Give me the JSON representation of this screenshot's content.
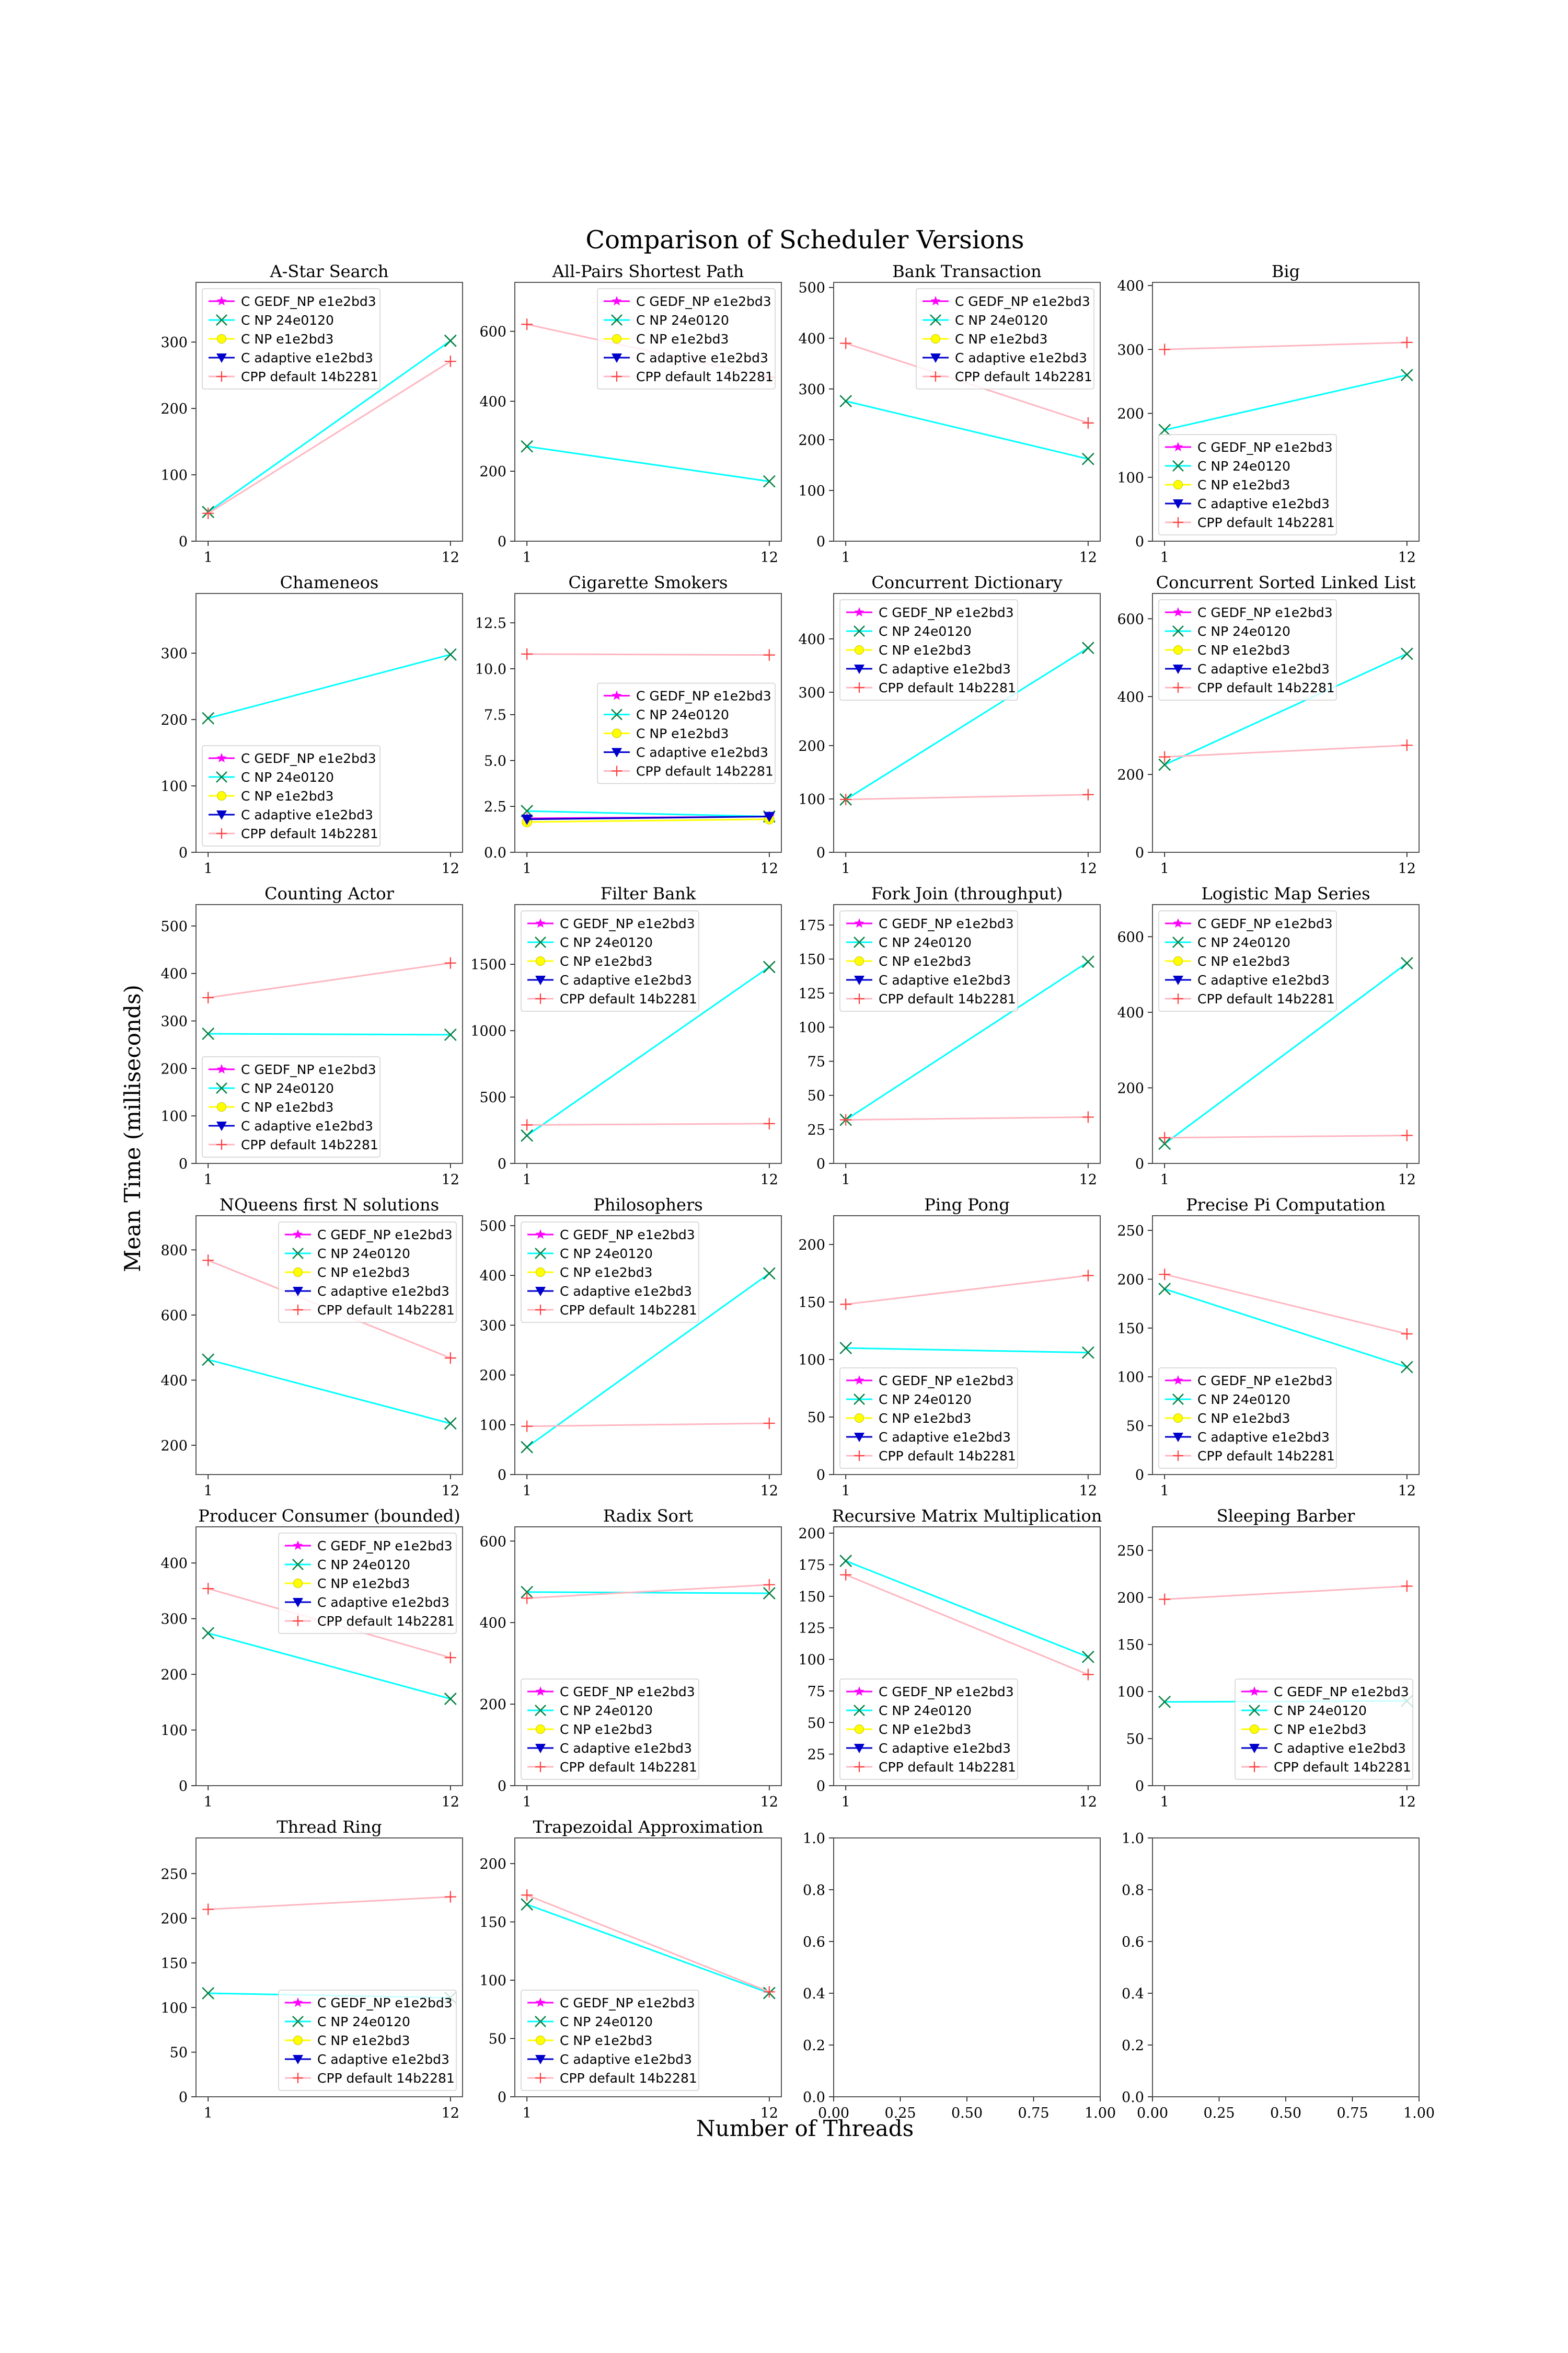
{
  "figure": {
    "suptitle": "Comparison of Scheduler Versions",
    "xlabel": "Number of Threads",
    "ylabel": "Mean Time (milliseconds)",
    "background": "#ffffff"
  },
  "legend_entries": [
    {
      "name": "C GEDF_NP e1e2bd3",
      "color": "#ff00ff",
      "marker": "star"
    },
    {
      "name": "C NP 24e0120",
      "color": "#00ffff",
      "marker": "x",
      "marker_color": "#008040"
    },
    {
      "name": "C NP e1e2bd3",
      "color": "#ffff00",
      "marker": "circle"
    },
    {
      "name": "C adaptive e1e2bd3",
      "color": "#0000cc",
      "marker": "triangle-down"
    },
    {
      "name": "CPP default 14b2281",
      "color": "#ffb6c1",
      "marker": "plus",
      "marker_color": "#ff4040"
    }
  ],
  "chart_data": [
    {
      "type": "line",
      "title": "A-Star Search",
      "x": [
        1,
        12
      ],
      "ylim": [
        0,
        390
      ],
      "yticks": [
        0,
        100,
        200,
        300
      ],
      "legend": "upper-left",
      "series": [
        {
          "name": "C NP 24e0120",
          "values": [
            44,
            302
          ]
        },
        {
          "name": "CPP default 14b2281",
          "values": [
            42,
            271
          ]
        }
      ]
    },
    {
      "type": "line",
      "title": "All-Pairs Shortest Path",
      "x": [
        1,
        12
      ],
      "ylim": [
        0,
        740
      ],
      "yticks": [
        0,
        200,
        400,
        600
      ],
      "legend": "upper-right",
      "series": [
        {
          "name": "C NP 24e0120",
          "values": [
            271,
            171
          ]
        },
        {
          "name": "CPP default 14b2281",
          "values": [
            620,
            469
          ]
        }
      ]
    },
    {
      "type": "line",
      "title": "Bank Transaction",
      "x": [
        1,
        12
      ],
      "ylim": [
        0,
        510
      ],
      "yticks": [
        0,
        100,
        200,
        300,
        400,
        500
      ],
      "legend": "upper-right",
      "series": [
        {
          "name": "C NP 24e0120",
          "values": [
            276,
            162
          ]
        },
        {
          "name": "CPP default 14b2281",
          "values": [
            390,
            233
          ]
        }
      ]
    },
    {
      "type": "line",
      "title": "Big",
      "x": [
        1,
        12
      ],
      "ylim": [
        0,
        405
      ],
      "yticks": [
        0,
        100,
        200,
        300,
        400
      ],
      "legend": "lower-left",
      "series": [
        {
          "name": "C NP 24e0120",
          "values": [
            174,
            260
          ]
        },
        {
          "name": "CPP default 14b2281",
          "values": [
            300,
            311
          ]
        }
      ]
    },
    {
      "type": "line",
      "title": "Chameneos",
      "x": [
        1,
        12
      ],
      "ylim": [
        0,
        390
      ],
      "yticks": [
        0,
        100,
        200,
        300
      ],
      "legend": "lower-left",
      "series": [
        {
          "name": "C NP 24e0120",
          "values": [
            202,
            298
          ]
        }
      ]
    },
    {
      "type": "line",
      "title": "Cigarette Smokers",
      "x": [
        1,
        12
      ],
      "ylim": [
        0,
        14.1
      ],
      "yticks": [
        0.0,
        2.5,
        5.0,
        7.5,
        10.0,
        12.5
      ],
      "tick_decimals": 1,
      "legend": "center-right",
      "series": [
        {
          "name": "C GEDF_NP e1e2bd3",
          "values": [
            1.85,
            1.95
          ]
        },
        {
          "name": "C NP 24e0120",
          "values": [
            2.25,
            1.95
          ]
        },
        {
          "name": "C NP e1e2bd3",
          "values": [
            1.65,
            1.8
          ]
        },
        {
          "name": "C adaptive e1e2bd3",
          "values": [
            1.8,
            1.95
          ]
        },
        {
          "name": "CPP default 14b2281",
          "values": [
            10.8,
            10.75
          ]
        }
      ]
    },
    {
      "type": "line",
      "title": "Concurrent Dictionary",
      "x": [
        1,
        12
      ],
      "ylim": [
        0,
        485
      ],
      "yticks": [
        0,
        100,
        200,
        300,
        400
      ],
      "legend": "upper-left",
      "series": [
        {
          "name": "C NP 24e0120",
          "values": [
            99,
            383
          ]
        },
        {
          "name": "CPP default 14b2281",
          "values": [
            99,
            108
          ]
        }
      ]
    },
    {
      "type": "line",
      "title": "Concurrent Sorted Linked List",
      "x": [
        1,
        12
      ],
      "ylim": [
        0,
        665
      ],
      "yticks": [
        0,
        200,
        400,
        600
      ],
      "legend": "upper-left",
      "series": [
        {
          "name": "C NP 24e0120",
          "values": [
            225,
            510
          ]
        },
        {
          "name": "CPP default 14b2281",
          "values": [
            245,
            275
          ]
        }
      ]
    },
    {
      "type": "line",
      "title": "Counting Actor",
      "x": [
        1,
        12
      ],
      "ylim": [
        0,
        545
      ],
      "yticks": [
        0,
        100,
        200,
        300,
        400,
        500
      ],
      "legend": "lower-left",
      "series": [
        {
          "name": "C NP 24e0120",
          "values": [
            273,
            271
          ]
        },
        {
          "name": "CPP default 14b2281",
          "values": [
            349,
            422
          ]
        }
      ]
    },
    {
      "type": "line",
      "title": "Filter Bank",
      "x": [
        1,
        12
      ],
      "ylim": [
        0,
        1950
      ],
      "yticks": [
        0,
        500,
        1000,
        1500
      ],
      "legend": "upper-left",
      "series": [
        {
          "name": "C NP 24e0120",
          "values": [
            210,
            1480
          ]
        },
        {
          "name": "CPP default 14b2281",
          "values": [
            290,
            300
          ]
        }
      ]
    },
    {
      "type": "line",
      "title": "Fork Join (throughput)",
      "x": [
        1,
        12
      ],
      "ylim": [
        0,
        190
      ],
      "yticks": [
        0,
        25,
        50,
        75,
        100,
        125,
        150,
        175
      ],
      "legend": "upper-left",
      "series": [
        {
          "name": "C NP 24e0120",
          "values": [
            32,
            148
          ]
        },
        {
          "name": "CPP default 14b2281",
          "values": [
            32,
            34
          ]
        }
      ]
    },
    {
      "type": "line",
      "title": "Logistic Map Series",
      "x": [
        1,
        12
      ],
      "ylim": [
        0,
        685
      ],
      "yticks": [
        0,
        200,
        400,
        600
      ],
      "legend": "upper-left",
      "series": [
        {
          "name": "C NP 24e0120",
          "values": [
            52,
            530
          ]
        },
        {
          "name": "CPP default 14b2281",
          "values": [
            68,
            74
          ]
        }
      ]
    },
    {
      "type": "line",
      "title": "NQueens first N solutions",
      "x": [
        1,
        12
      ],
      "ylim": [
        110,
        905
      ],
      "yticks": [
        200,
        400,
        600,
        800
      ],
      "legend": "upper-right",
      "series": [
        {
          "name": "C NP 24e0120",
          "values": [
            463,
            267
          ]
        },
        {
          "name": "CPP default 14b2281",
          "values": [
            768,
            468
          ]
        }
      ]
    },
    {
      "type": "line",
      "title": "Philosophers",
      "x": [
        1,
        12
      ],
      "ylim": [
        0,
        520
      ],
      "yticks": [
        0,
        100,
        200,
        300,
        400,
        500
      ],
      "legend": "upper-left",
      "series": [
        {
          "name": "C NP 24e0120",
          "values": [
            55,
            404
          ]
        },
        {
          "name": "CPP default 14b2281",
          "values": [
            97,
            103
          ]
        }
      ]
    },
    {
      "type": "line",
      "title": "Ping Pong",
      "x": [
        1,
        12
      ],
      "ylim": [
        0,
        225
      ],
      "yticks": [
        0,
        50,
        100,
        150,
        200
      ],
      "legend": "lower-left",
      "series": [
        {
          "name": "C NP 24e0120",
          "values": [
            110,
            106
          ]
        },
        {
          "name": "CPP default 14b2281",
          "values": [
            148,
            173
          ]
        }
      ]
    },
    {
      "type": "line",
      "title": "Precise Pi Computation",
      "x": [
        1,
        12
      ],
      "ylim": [
        0,
        265
      ],
      "yticks": [
        0,
        50,
        100,
        150,
        200,
        250
      ],
      "legend": "lower-left",
      "series": [
        {
          "name": "C NP 24e0120",
          "values": [
            190,
            110
          ]
        },
        {
          "name": "CPP default 14b2281",
          "values": [
            205,
            144
          ]
        }
      ]
    },
    {
      "type": "line",
      "title": "Producer Consumer (bounded)",
      "x": [
        1,
        12
      ],
      "ylim": [
        0,
        465
      ],
      "yticks": [
        0,
        100,
        200,
        300,
        400
      ],
      "legend": "upper-right",
      "series": [
        {
          "name": "C NP 24e0120",
          "values": [
            274,
            156
          ]
        },
        {
          "name": "CPP default 14b2281",
          "values": [
            354,
            230
          ]
        }
      ]
    },
    {
      "type": "line",
      "title": "Radix Sort",
      "x": [
        1,
        12
      ],
      "ylim": [
        0,
        635
      ],
      "yticks": [
        0,
        200,
        400,
        600
      ],
      "legend": "lower-left",
      "series": [
        {
          "name": "C NP 24e0120",
          "values": [
            475,
            472
          ]
        },
        {
          "name": "CPP default 14b2281",
          "values": [
            460,
            493
          ]
        }
      ]
    },
    {
      "type": "line",
      "title": "Recursive Matrix Multiplication",
      "x": [
        1,
        12
      ],
      "ylim": [
        0,
        205
      ],
      "yticks": [
        0,
        25,
        50,
        75,
        100,
        125,
        150,
        175,
        200
      ],
      "legend": "lower-left",
      "series": [
        {
          "name": "C NP 24e0120",
          "values": [
            178,
            102
          ]
        },
        {
          "name": "CPP default 14b2281",
          "values": [
            167,
            88
          ]
        }
      ]
    },
    {
      "type": "line",
      "title": "Sleeping Barber",
      "x": [
        1,
        12
      ],
      "ylim": [
        0,
        275
      ],
      "yticks": [
        0,
        50,
        100,
        150,
        200,
        250
      ],
      "legend": "lower-right",
      "series": [
        {
          "name": "C NP 24e0120",
          "values": [
            89,
            90
          ]
        },
        {
          "name": "CPP default 14b2281",
          "values": [
            198,
            212
          ]
        }
      ]
    },
    {
      "type": "line",
      "title": "Thread Ring",
      "x": [
        1,
        12
      ],
      "ylim": [
        0,
        290
      ],
      "yticks": [
        0,
        50,
        100,
        150,
        200,
        250
      ],
      "legend": "lower-right",
      "series": [
        {
          "name": "C NP 24e0120",
          "values": [
            116,
            111
          ]
        },
        {
          "name": "CPP default 14b2281",
          "values": [
            210,
            224
          ]
        }
      ]
    },
    {
      "type": "line",
      "title": "Trapezoidal Approximation",
      "x": [
        1,
        12
      ],
      "ylim": [
        0,
        222
      ],
      "yticks": [
        0,
        50,
        100,
        150,
        200
      ],
      "legend": "lower-left",
      "series": [
        {
          "name": "C NP 24e0120",
          "values": [
            165,
            89
          ]
        },
        {
          "name": "CPP default 14b2281",
          "values": [
            173,
            90
          ]
        }
      ]
    },
    {
      "type": "line",
      "title": "",
      "empty": true,
      "xlim": [
        0,
        1
      ],
      "ylim": [
        0,
        1
      ],
      "xticks": [
        0.0,
        0.25,
        0.5,
        0.75,
        1.0
      ],
      "yticks": [
        0.0,
        0.2,
        0.4,
        0.6,
        0.8,
        1.0
      ],
      "series": []
    },
    {
      "type": "line",
      "title": "",
      "empty": true,
      "xlim": [
        0,
        1
      ],
      "ylim": [
        0,
        1
      ],
      "xticks": [
        0.0,
        0.25,
        0.5,
        0.75,
        1.0
      ],
      "yticks": [
        0.0,
        0.2,
        0.4,
        0.6,
        0.8,
        1.0
      ],
      "series": []
    }
  ]
}
